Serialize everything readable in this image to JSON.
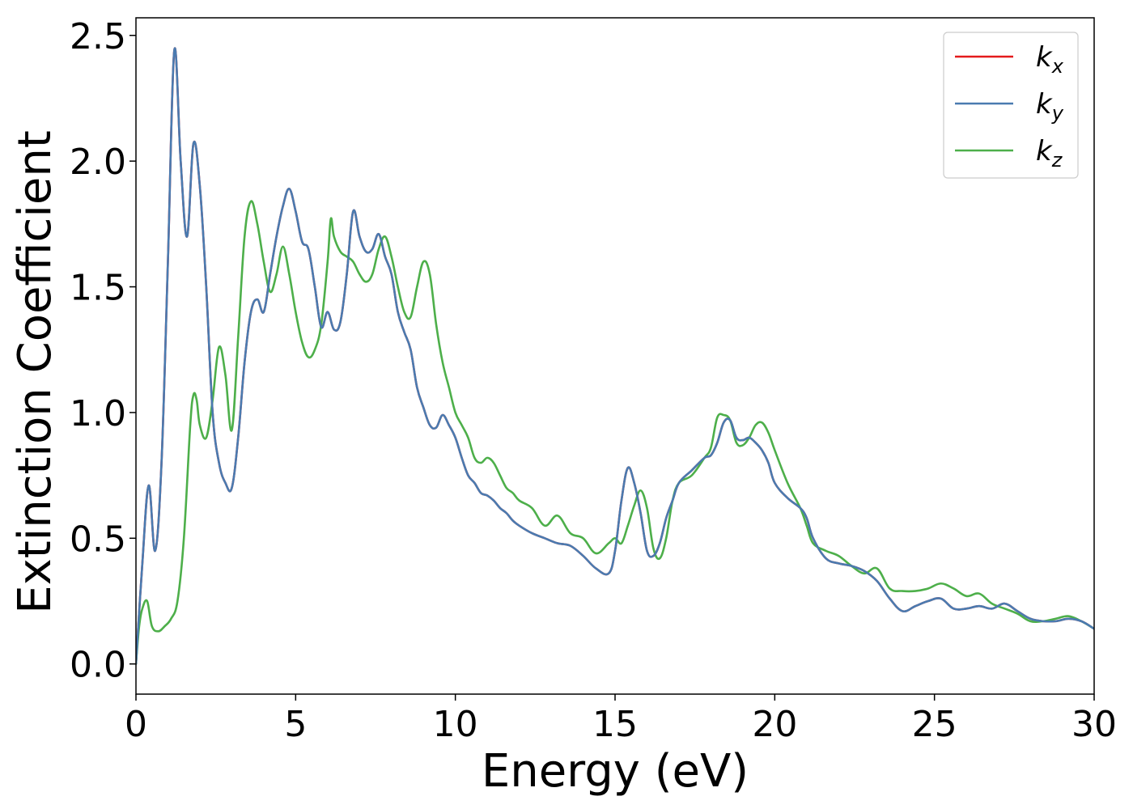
{
  "chart_data": {
    "type": "line",
    "title": "",
    "xlabel": "Energy (eV)",
    "ylabel": "Extinction Coefficient",
    "xlim": [
      0,
      30
    ],
    "ylim": [
      -0.12,
      2.57
    ],
    "xticks": [
      0,
      5,
      10,
      15,
      20,
      25,
      30
    ],
    "xtick_labels": [
      "0",
      "5",
      "10",
      "15",
      "20",
      "25",
      "30"
    ],
    "yticks": [
      0.0,
      0.5,
      1.0,
      1.5,
      2.0,
      2.5
    ],
    "ytick_labels": [
      "0.0",
      "0.5",
      "1.0",
      "1.5",
      "2.0",
      "2.5"
    ],
    "grid": false,
    "legend_position": "top-right",
    "series": [
      {
        "name": "k",
        "subscript": "x",
        "color": "#e41a1c",
        "x": [
          0,
          0.2,
          0.4,
          0.6,
          0.8,
          1.0,
          1.2,
          1.4,
          1.6,
          1.8,
          2.0,
          2.2,
          2.4,
          2.6,
          2.8,
          3.0,
          3.2,
          3.4,
          3.6,
          3.8,
          4.0,
          4.2,
          4.4,
          4.6,
          4.8,
          5.0,
          5.2,
          5.4,
          5.6,
          5.8,
          6.0,
          6.2,
          6.4,
          6.6,
          6.8,
          7.0,
          7.2,
          7.4,
          7.6,
          7.8,
          8.0,
          8.2,
          8.4,
          8.6,
          8.8,
          9.0,
          9.2,
          9.4,
          9.6,
          9.8,
          10.0,
          10.2,
          10.4,
          10.6,
          10.8,
          11.0,
          11.2,
          11.4,
          11.6,
          11.8,
          12.0,
          12.4,
          12.8,
          13.2,
          13.6,
          14.0,
          14.4,
          14.8,
          15.0,
          15.2,
          15.4,
          15.6,
          15.8,
          16.0,
          16.2,
          16.4,
          16.6,
          16.8,
          17.0,
          17.4,
          17.8,
          18.0,
          18.2,
          18.4,
          18.6,
          18.8,
          19.0,
          19.2,
          19.4,
          19.6,
          19.8,
          20.0,
          20.4,
          20.8,
          21.0,
          21.2,
          21.6,
          22.0,
          22.4,
          22.8,
          23.2,
          23.6,
          24.0,
          24.4,
          24.8,
          25.2,
          25.6,
          26.0,
          26.4,
          26.8,
          27.2,
          27.6,
          28.0,
          28.4,
          28.8,
          29.2,
          29.6,
          30.0
        ],
        "y": [
          0.0,
          0.4,
          0.71,
          0.45,
          0.8,
          1.6,
          2.44,
          2.0,
          1.7,
          2.07,
          1.9,
          1.5,
          1.0,
          0.8,
          0.72,
          0.7,
          0.9,
          1.2,
          1.4,
          1.45,
          1.4,
          1.55,
          1.7,
          1.82,
          1.89,
          1.8,
          1.68,
          1.65,
          1.5,
          1.34,
          1.4,
          1.33,
          1.36,
          1.55,
          1.8,
          1.7,
          1.64,
          1.65,
          1.71,
          1.62,
          1.55,
          1.4,
          1.32,
          1.25,
          1.1,
          1.02,
          0.95,
          0.94,
          0.99,
          0.95,
          0.9,
          0.82,
          0.75,
          0.72,
          0.68,
          0.67,
          0.65,
          0.62,
          0.6,
          0.57,
          0.55,
          0.52,
          0.5,
          0.48,
          0.47,
          0.43,
          0.38,
          0.36,
          0.45,
          0.65,
          0.78,
          0.72,
          0.6,
          0.45,
          0.43,
          0.48,
          0.58,
          0.65,
          0.72,
          0.77,
          0.82,
          0.83,
          0.88,
          0.96,
          0.97,
          0.9,
          0.89,
          0.9,
          0.88,
          0.85,
          0.8,
          0.72,
          0.66,
          0.62,
          0.58,
          0.5,
          0.42,
          0.4,
          0.39,
          0.37,
          0.33,
          0.26,
          0.21,
          0.23,
          0.25,
          0.26,
          0.22,
          0.22,
          0.23,
          0.22,
          0.24,
          0.21,
          0.18,
          0.17,
          0.17,
          0.18,
          0.17,
          0.14
        ]
      },
      {
        "name": "k",
        "subscript": "y",
        "color": "#4a7bb0",
        "x": [
          0,
          0.2,
          0.4,
          0.6,
          0.8,
          1.0,
          1.2,
          1.4,
          1.6,
          1.8,
          2.0,
          2.2,
          2.4,
          2.6,
          2.8,
          3.0,
          3.2,
          3.4,
          3.6,
          3.8,
          4.0,
          4.2,
          4.4,
          4.6,
          4.8,
          5.0,
          5.2,
          5.4,
          5.6,
          5.8,
          6.0,
          6.2,
          6.4,
          6.6,
          6.8,
          7.0,
          7.2,
          7.4,
          7.6,
          7.8,
          8.0,
          8.2,
          8.4,
          8.6,
          8.8,
          9.0,
          9.2,
          9.4,
          9.6,
          9.8,
          10.0,
          10.2,
          10.4,
          10.6,
          10.8,
          11.0,
          11.2,
          11.4,
          11.6,
          11.8,
          12.0,
          12.4,
          12.8,
          13.2,
          13.6,
          14.0,
          14.4,
          14.8,
          15.0,
          15.2,
          15.4,
          15.6,
          15.8,
          16.0,
          16.2,
          16.4,
          16.6,
          16.8,
          17.0,
          17.4,
          17.8,
          18.0,
          18.2,
          18.4,
          18.6,
          18.8,
          19.0,
          19.2,
          19.4,
          19.6,
          19.8,
          20.0,
          20.4,
          20.8,
          21.0,
          21.2,
          21.6,
          22.0,
          22.4,
          22.8,
          23.2,
          23.6,
          24.0,
          24.4,
          24.8,
          25.2,
          25.6,
          26.0,
          26.4,
          26.8,
          27.2,
          27.6,
          28.0,
          28.4,
          28.8,
          29.2,
          29.6,
          30.0
        ],
        "y": [
          0.0,
          0.4,
          0.71,
          0.45,
          0.8,
          1.6,
          2.44,
          2.0,
          1.7,
          2.07,
          1.9,
          1.5,
          1.0,
          0.8,
          0.72,
          0.7,
          0.9,
          1.2,
          1.4,
          1.45,
          1.4,
          1.55,
          1.7,
          1.82,
          1.89,
          1.8,
          1.68,
          1.65,
          1.5,
          1.34,
          1.4,
          1.33,
          1.36,
          1.55,
          1.8,
          1.7,
          1.64,
          1.65,
          1.71,
          1.62,
          1.55,
          1.4,
          1.32,
          1.25,
          1.1,
          1.02,
          0.95,
          0.94,
          0.99,
          0.95,
          0.9,
          0.82,
          0.75,
          0.72,
          0.68,
          0.67,
          0.65,
          0.62,
          0.6,
          0.57,
          0.55,
          0.52,
          0.5,
          0.48,
          0.47,
          0.43,
          0.38,
          0.36,
          0.45,
          0.65,
          0.78,
          0.72,
          0.6,
          0.45,
          0.43,
          0.48,
          0.58,
          0.65,
          0.72,
          0.77,
          0.82,
          0.83,
          0.88,
          0.96,
          0.97,
          0.9,
          0.89,
          0.9,
          0.88,
          0.85,
          0.8,
          0.72,
          0.66,
          0.62,
          0.58,
          0.5,
          0.42,
          0.4,
          0.39,
          0.37,
          0.33,
          0.26,
          0.21,
          0.23,
          0.25,
          0.26,
          0.22,
          0.22,
          0.23,
          0.22,
          0.24,
          0.21,
          0.18,
          0.17,
          0.17,
          0.18,
          0.17,
          0.14
        ]
      },
      {
        "name": "k",
        "subscript": "z",
        "color": "#4daf4a",
        "x": [
          0,
          0.1,
          0.2,
          0.35,
          0.5,
          0.7,
          0.9,
          1.1,
          1.3,
          1.5,
          1.7,
          1.8,
          1.9,
          2.0,
          2.2,
          2.4,
          2.6,
          2.8,
          3.0,
          3.2,
          3.4,
          3.6,
          3.8,
          4.0,
          4.2,
          4.4,
          4.6,
          4.8,
          5.0,
          5.2,
          5.4,
          5.6,
          5.8,
          6.0,
          6.1,
          6.2,
          6.4,
          6.6,
          6.8,
          7.0,
          7.2,
          7.4,
          7.6,
          7.8,
          8.0,
          8.2,
          8.4,
          8.6,
          8.8,
          9.0,
          9.2,
          9.4,
          9.6,
          9.8,
          10.0,
          10.2,
          10.4,
          10.6,
          10.8,
          11.0,
          11.2,
          11.4,
          11.6,
          11.8,
          12.0,
          12.4,
          12.8,
          13.2,
          13.6,
          14.0,
          14.4,
          14.8,
          15.0,
          15.2,
          15.4,
          15.6,
          15.8,
          16.0,
          16.2,
          16.4,
          16.6,
          16.8,
          17.0,
          17.4,
          17.8,
          18.0,
          18.2,
          18.4,
          18.6,
          18.8,
          19.0,
          19.2,
          19.4,
          19.6,
          19.8,
          20.0,
          20.4,
          20.8,
          21.0,
          21.2,
          21.6,
          22.0,
          22.4,
          22.8,
          23.2,
          23.6,
          24.0,
          24.4,
          24.8,
          25.2,
          25.6,
          26.0,
          26.4,
          26.8,
          27.2,
          27.6,
          28.0,
          28.4,
          28.8,
          29.2,
          29.6,
          30.0
        ],
        "y": [
          0.0,
          0.15,
          0.22,
          0.25,
          0.15,
          0.13,
          0.15,
          0.18,
          0.25,
          0.5,
          0.95,
          1.07,
          1.05,
          0.95,
          0.9,
          1.05,
          1.26,
          1.15,
          0.93,
          1.3,
          1.7,
          1.84,
          1.75,
          1.6,
          1.48,
          1.55,
          1.66,
          1.55,
          1.4,
          1.28,
          1.22,
          1.25,
          1.35,
          1.6,
          1.77,
          1.7,
          1.64,
          1.62,
          1.6,
          1.55,
          1.52,
          1.55,
          1.65,
          1.7,
          1.62,
          1.5,
          1.4,
          1.38,
          1.5,
          1.6,
          1.55,
          1.35,
          1.2,
          1.1,
          1.0,
          0.95,
          0.9,
          0.82,
          0.8,
          0.82,
          0.8,
          0.75,
          0.7,
          0.68,
          0.65,
          0.62,
          0.55,
          0.59,
          0.52,
          0.5,
          0.44,
          0.48,
          0.5,
          0.48,
          0.55,
          0.63,
          0.69,
          0.62,
          0.46,
          0.42,
          0.5,
          0.65,
          0.72,
          0.75,
          0.82,
          0.86,
          0.98,
          0.99,
          0.97,
          0.88,
          0.87,
          0.9,
          0.95,
          0.96,
          0.92,
          0.85,
          0.72,
          0.62,
          0.55,
          0.48,
          0.45,
          0.43,
          0.39,
          0.36,
          0.38,
          0.3,
          0.29,
          0.29,
          0.3,
          0.32,
          0.3,
          0.27,
          0.28,
          0.24,
          0.22,
          0.2,
          0.17,
          0.17,
          0.18,
          0.19,
          0.17,
          0.14
        ]
      }
    ]
  }
}
